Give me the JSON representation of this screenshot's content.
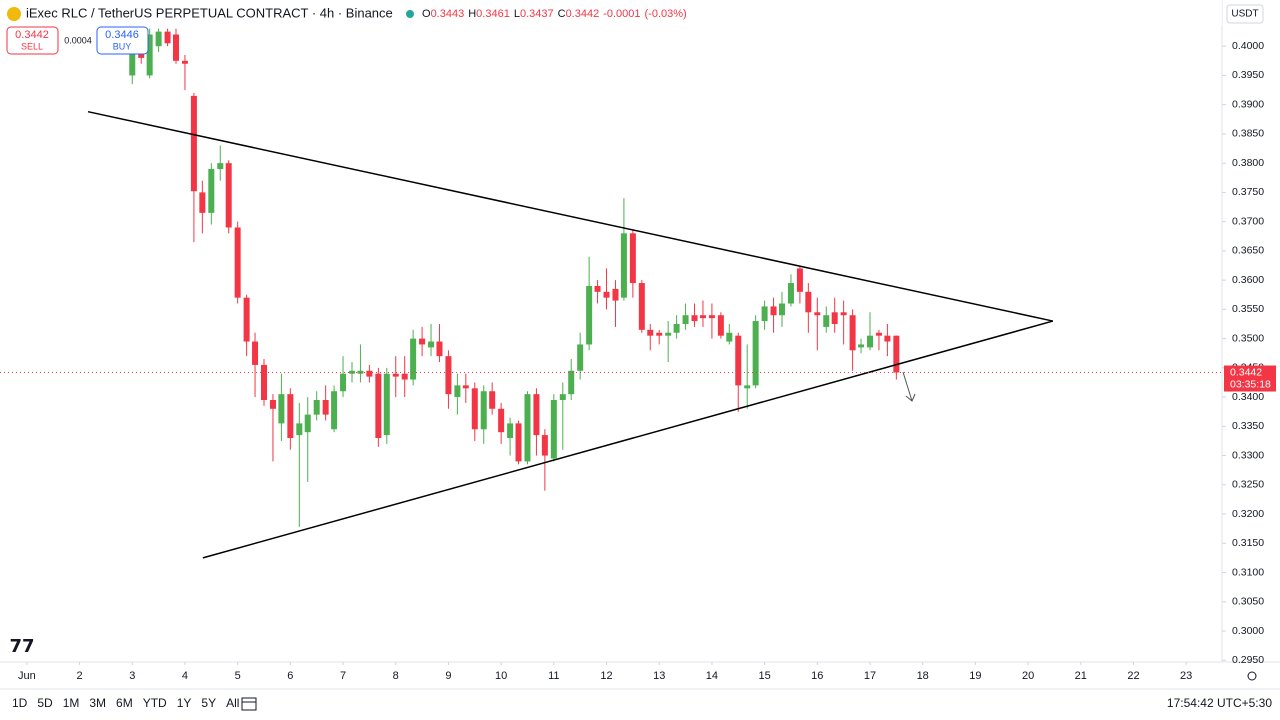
{
  "chart_data": {
    "type": "candlestick",
    "title": "iExec RLC / TetherUS PERPETUAL CONTRACT · 4h · Binance",
    "up_color": "#4caf50",
    "down_color": "#f23645",
    "x": [
      2.83,
      3,
      3.17,
      3.33,
      3.5,
      3.67,
      3.83,
      4,
      4.17,
      4.33,
      4.5,
      4.67,
      4.83,
      5,
      5.17,
      5.33,
      5.5,
      5.67,
      5.83,
      6,
      6.17,
      6.33,
      6.5,
      6.67,
      6.83,
      7,
      7.17,
      7.33,
      7.5,
      7.67,
      7.83,
      8,
      8.17,
      8.33,
      8.5,
      8.67,
      8.83,
      9,
      9.17,
      9.33,
      9.5,
      9.67,
      9.83,
      10,
      10.17,
      10.33,
      10.5,
      10.67,
      10.83,
      11,
      11.17,
      11.33,
      11.5,
      11.67,
      11.83,
      12,
      12.17,
      12.33,
      12.5,
      12.67,
      12.83,
      13,
      13.17,
      13.33,
      13.5,
      13.67,
      13.83,
      14,
      14.17,
      14.33,
      14.5,
      14.67,
      14.83,
      15,
      15.17,
      15.33,
      15.5,
      15.67,
      15.83,
      16,
      16.17,
      16.33,
      16.5,
      16.67,
      16.83,
      17,
      17.17,
      17.33,
      17.5
    ],
    "open": [
      0.4005,
      0.395,
      0.401,
      0.395,
      0.4,
      0.4025,
      0.402,
      0.3975,
      0.3915,
      0.375,
      0.3715,
      0.379,
      0.38,
      0.369,
      0.357,
      0.3495,
      0.3455,
      0.3395,
      0.3355,
      0.3405,
      0.3335,
      0.334,
      0.337,
      0.3395,
      0.3345,
      0.341,
      0.344,
      0.344,
      0.3445,
      0.344,
      0.3335,
      0.344,
      0.344,
      0.343,
      0.35,
      0.3485,
      0.3495,
      0.347,
      0.34,
      0.342,
      0.3415,
      0.3345,
      0.341,
      0.338,
      0.333,
      0.3355,
      0.329,
      0.3405,
      0.3335,
      0.3295,
      0.3395,
      0.3405,
      0.3445,
      0.349,
      0.359,
      0.358,
      0.3585,
      0.357,
      0.368,
      0.3595,
      0.3515,
      0.351,
      0.3505,
      0.351,
      0.3525,
      0.354,
      0.354,
      0.354,
      0.354,
      0.3495,
      0.3505,
      0.3415,
      0.342,
      0.353,
      0.3555,
      0.354,
      0.356,
      0.362,
      0.358,
      0.3545,
      0.352,
      0.3545,
      0.3545,
      0.354,
      0.3485,
      0.3485,
      0.351,
      0.3505,
      0.3505
    ],
    "high": [
      0.402,
      0.4025,
      0.4025,
      0.403,
      0.403,
      0.403,
      0.403,
      0.3985,
      0.392,
      0.377,
      0.38,
      0.383,
      0.3805,
      0.37,
      0.3575,
      0.351,
      0.3465,
      0.3405,
      0.344,
      0.3415,
      0.339,
      0.34,
      0.341,
      0.342,
      0.342,
      0.347,
      0.346,
      0.349,
      0.3455,
      0.345,
      0.345,
      0.347,
      0.347,
      0.3515,
      0.352,
      0.3525,
      0.3525,
      0.348,
      0.344,
      0.344,
      0.3425,
      0.342,
      0.3425,
      0.339,
      0.3365,
      0.336,
      0.341,
      0.3415,
      0.3345,
      0.3405,
      0.3425,
      0.3465,
      0.351,
      0.364,
      0.36,
      0.362,
      0.36,
      0.374,
      0.3685,
      0.36,
      0.3525,
      0.3515,
      0.353,
      0.354,
      0.356,
      0.356,
      0.3565,
      0.356,
      0.3545,
      0.3525,
      0.351,
      0.349,
      0.354,
      0.3565,
      0.357,
      0.358,
      0.361,
      0.3625,
      0.3595,
      0.357,
      0.3555,
      0.357,
      0.3565,
      0.355,
      0.35,
      0.3545,
      0.3515,
      0.3525,
      0.3505
    ],
    "low": [
      0.399,
      0.3935,
      0.397,
      0.3945,
      0.399,
      0.4,
      0.397,
      0.3925,
      0.3665,
      0.368,
      0.3695,
      0.377,
      0.368,
      0.356,
      0.347,
      0.34,
      0.3385,
      0.329,
      0.3325,
      0.331,
      0.3178,
      0.3255,
      0.336,
      0.336,
      0.334,
      0.34,
      0.3425,
      0.3425,
      0.3425,
      0.3315,
      0.332,
      0.34,
      0.34,
      0.342,
      0.347,
      0.347,
      0.346,
      0.338,
      0.337,
      0.339,
      0.3325,
      0.332,
      0.337,
      0.332,
      0.33,
      0.3285,
      0.3285,
      0.33,
      0.324,
      0.329,
      0.331,
      0.3395,
      0.343,
      0.348,
      0.356,
      0.355,
      0.352,
      0.3565,
      0.357,
      0.351,
      0.348,
      0.349,
      0.346,
      0.35,
      0.3515,
      0.352,
      0.352,
      0.35,
      0.35,
      0.349,
      0.3375,
      0.338,
      0.3415,
      0.3515,
      0.351,
      0.352,
      0.3555,
      0.356,
      0.351,
      0.348,
      0.351,
      0.351,
      0.349,
      0.3445,
      0.3475,
      0.348,
      0.348,
      0.347,
      0.343
    ],
    "close": [
      0.3995,
      0.401,
      0.398,
      0.402,
      0.4025,
      0.4005,
      0.3975,
      0.397,
      0.3752,
      0.3715,
      0.379,
      0.38,
      0.369,
      0.357,
      0.3495,
      0.3455,
      0.3395,
      0.338,
      0.3405,
      0.333,
      0.3355,
      0.337,
      0.3395,
      0.337,
      0.341,
      0.344,
      0.3445,
      0.3445,
      0.3435,
      0.333,
      0.344,
      0.3435,
      0.343,
      0.35,
      0.349,
      0.3495,
      0.347,
      0.3405,
      0.342,
      0.3415,
      0.3345,
      0.341,
      0.338,
      0.334,
      0.3355,
      0.329,
      0.3405,
      0.3335,
      0.33,
      0.3395,
      0.3405,
      0.3445,
      0.349,
      0.359,
      0.358,
      0.357,
      0.3565,
      0.368,
      0.3595,
      0.3515,
      0.3505,
      0.3505,
      0.351,
      0.3525,
      0.354,
      0.353,
      0.3535,
      0.3535,
      0.3505,
      0.351,
      0.342,
      0.342,
      0.353,
      0.3555,
      0.354,
      0.356,
      0.3595,
      0.358,
      0.3545,
      0.354,
      0.354,
      0.3525,
      0.354,
      0.348,
      0.349,
      0.3505,
      0.3505,
      0.3495,
      0.3442
    ],
    "trendlines": [
      {
        "x": [
          2.16,
          20.47
        ],
        "y": [
          0.3888,
          0.353
        ]
      },
      {
        "x": [
          4.34,
          20.47
        ],
        "y": [
          0.3125,
          0.353
        ]
      }
    ],
    "xlim": [
      0.49,
      23.68
    ],
    "ylim": [
      0.2947,
      0.4079
    ],
    "xticks": [
      {
        "value": 1,
        "label": "Jun"
      },
      2,
      3,
      4,
      5,
      6,
      7,
      8,
      9,
      10,
      11,
      12,
      13,
      14,
      15,
      16,
      17,
      18,
      19,
      20,
      21,
      22,
      23
    ],
    "yticks": [
      {
        "value": 0.295,
        "label": "0.2950"
      },
      {
        "value": 0.3,
        "label": "0.3000"
      },
      {
        "value": 0.305,
        "label": "0.3050"
      },
      {
        "value": 0.31,
        "label": "0.3100"
      },
      {
        "value": 0.315,
        "label": "0.3150"
      },
      {
        "value": 0.32,
        "label": "0.3200"
      },
      {
        "value": 0.325,
        "label": "0.3250"
      },
      {
        "value": 0.33,
        "label": "0.3300"
      },
      {
        "value": 0.335,
        "label": "0.3350"
      },
      {
        "value": 0.34,
        "label": "0.3400"
      },
      {
        "value": 0.345,
        "label": "0.3450"
      },
      {
        "value": 0.35,
        "label": "0.3500"
      },
      {
        "value": 0.355,
        "label": "0.3550"
      },
      {
        "value": 0.36,
        "label": "0.3600"
      },
      {
        "value": 0.365,
        "label": "0.3650"
      },
      {
        "value": 0.37,
        "label": "0.3700"
      },
      {
        "value": 0.375,
        "label": "0.3750"
      },
      {
        "value": 0.38,
        "label": "0.3800"
      },
      {
        "value": 0.385,
        "label": "0.3850"
      },
      {
        "value": 0.39,
        "label": "0.3900"
      },
      {
        "value": 0.395,
        "label": "0.3950"
      },
      {
        "value": 0.4,
        "label": "0.4000"
      }
    ],
    "grid": false
  },
  "ui": {
    "ohlc_labels": [
      "O",
      "H",
      "L",
      "C"
    ],
    "ohlc_values": [
      0.3443,
      0.3461,
      0.3437,
      0.3442
    ],
    "change": -0.0001,
    "change_pct": "(-0.03%)",
    "sell_price": 0.3442,
    "sell_label": "SELL",
    "spread": 0.0004,
    "buy_price": 0.3446,
    "buy_label": "BUY",
    "currency": "USDT",
    "last_price": 0.3442,
    "countdown": "03:35:18",
    "ranges": [
      "1D",
      "5D",
      "1M",
      "3M",
      "6M",
      "YTD",
      "1Y",
      "5Y",
      "All"
    ],
    "clock": "17:54:42 UTC+5:30"
  }
}
